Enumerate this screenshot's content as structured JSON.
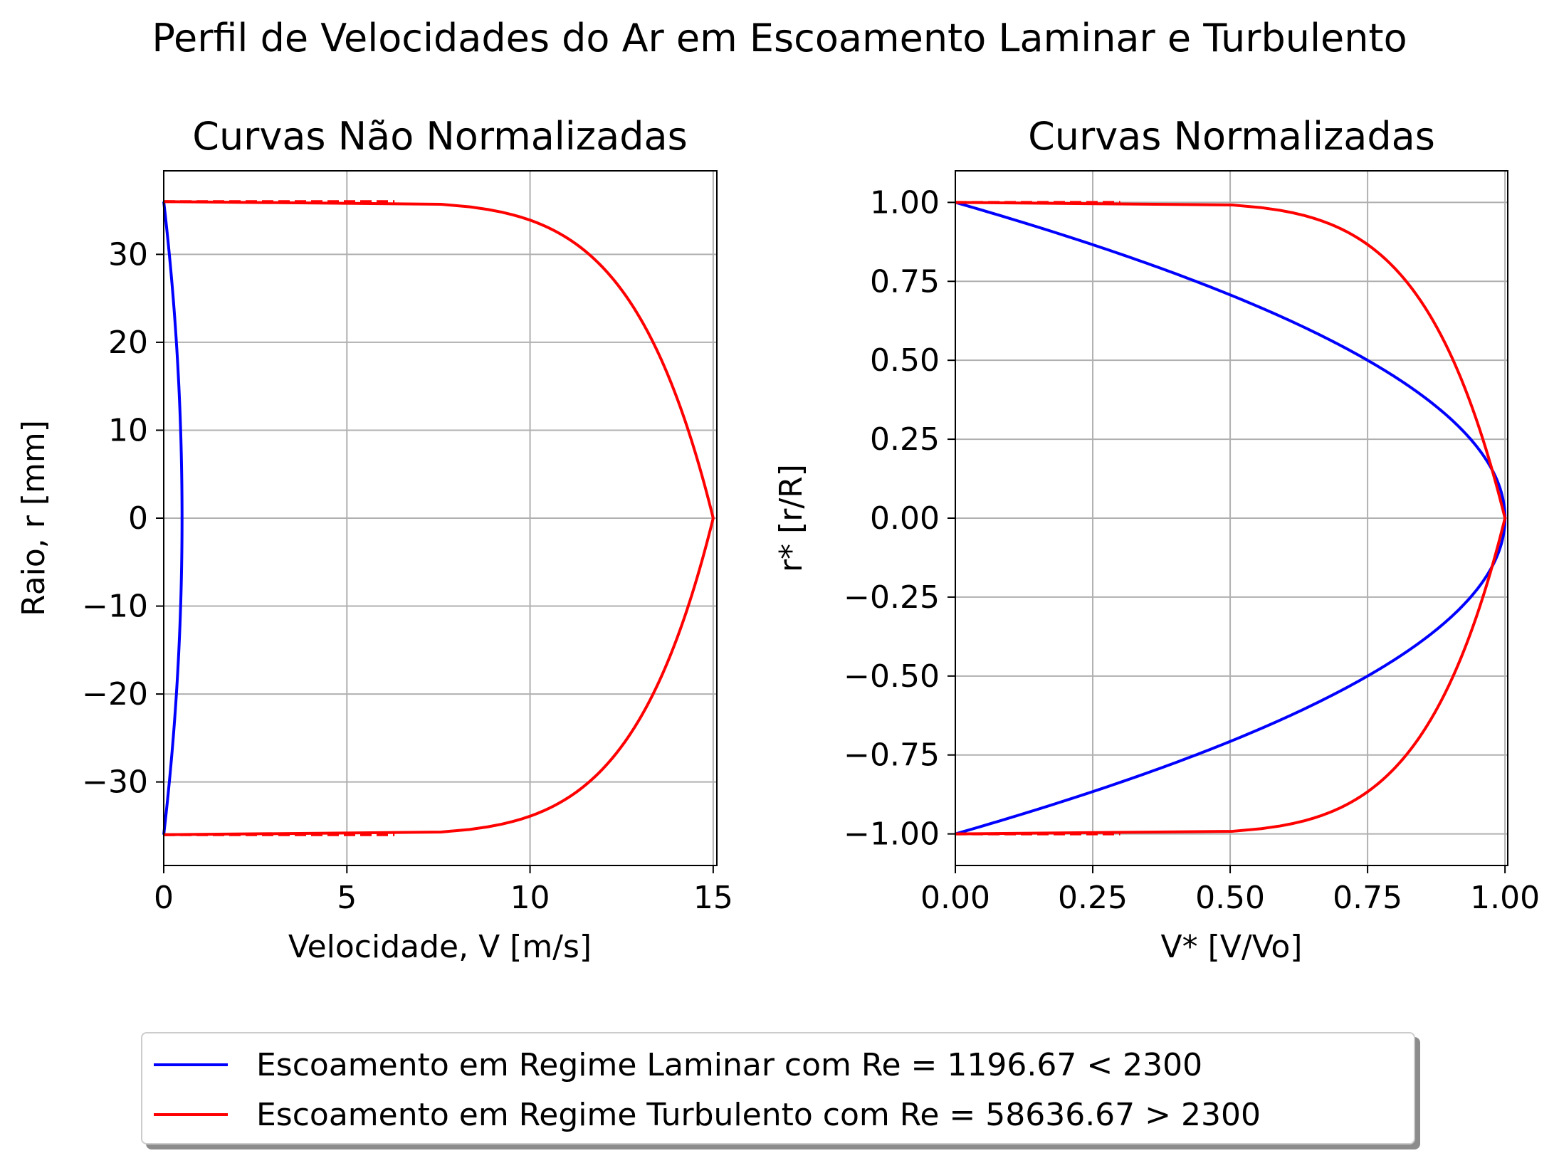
{
  "suptitle": "Perfil de Velocidades do Ar em Escoamento Laminar e Turbulento",
  "colors": {
    "laminar": "#0000ff",
    "turbulent": "#ff0000",
    "grid": "#b0b0b0"
  },
  "legend": {
    "laminar": "Escoamento em Regime Laminar com Re = 1196.67 < 2300",
    "turbulent": "Escoamento em Regime Turbulento com Re = 58636.67 > 2300"
  },
  "chart_data": [
    {
      "type": "line",
      "title": "Curvas Não Normalizadas",
      "xlabel": "Velocidade, V [m/s]",
      "ylabel": "Raio, r [mm]",
      "xlim": [
        0,
        15.1
      ],
      "ylim": [
        -39.5,
        39.5
      ],
      "xticks": [
        0,
        5,
        10,
        15
      ],
      "yticks": [
        30,
        20,
        10,
        0,
        -10,
        -20,
        -30
      ],
      "xtick_labels": [
        "0",
        "5",
        "10",
        "15"
      ],
      "ytick_labels": [
        "30",
        "20",
        "10",
        "0",
        "−10",
        "−20",
        "−30"
      ],
      "grid": true,
      "series": [
        {
          "name": "Escoamento em Regime Laminar com Re = 1196.67 < 2300",
          "profile": "laminar",
          "vmax": 0.5,
          "R": 36,
          "color": "#0000ff"
        },
        {
          "name": "Escoamento em Regime Turbulento com Re = 58636.67 > 2300",
          "profile": "turbulent",
          "vmax": 15,
          "R": 36,
          "color": "#ff0000"
        },
        {
          "name": "",
          "style": "dashed",
          "x": [
            0,
            6.3
          ],
          "y": [
            36,
            36
          ],
          "color": "#ff0000"
        },
        {
          "name": "",
          "style": "dashed",
          "x": [
            0,
            6.3
          ],
          "y": [
            -36,
            -36
          ],
          "color": "#ff0000"
        }
      ]
    },
    {
      "type": "line",
      "title": "Curvas Normalizadas",
      "xlabel": "V* [V/Vo]",
      "ylabel": "r* [r/R]",
      "xlim": [
        0,
        1.005
      ],
      "ylim": [
        -1.1,
        1.1
      ],
      "xticks": [
        0,
        0.25,
        0.5,
        0.75,
        1.0
      ],
      "yticks": [
        1.0,
        0.75,
        0.5,
        0.25,
        0.0,
        -0.25,
        -0.5,
        -0.75,
        -1.0
      ],
      "xtick_labels": [
        "0.00",
        "0.25",
        "0.50",
        "0.75",
        "1.00"
      ],
      "ytick_labels": [
        "1.00",
        "0.75",
        "0.50",
        "0.25",
        "0.00",
        "−0.25",
        "−0.50",
        "−0.75",
        "−1.00"
      ],
      "grid": true,
      "series": [
        {
          "name": "Escoamento em Regime Laminar com Re = 1196.67 < 2300",
          "profile": "laminar",
          "vmax": 1,
          "R": 1,
          "color": "#0000ff"
        },
        {
          "name": "Escoamento em Regime Turbulento com Re = 58636.67 > 2300",
          "profile": "turbulent",
          "vmax": 1,
          "R": 1,
          "color": "#ff0000"
        },
        {
          "name": "",
          "style": "dashed",
          "x": [
            0,
            0.3
          ],
          "y": [
            1,
            1
          ],
          "color": "#ff0000"
        },
        {
          "name": "",
          "style": "dashed",
          "x": [
            0,
            0.3
          ],
          "y": [
            -1,
            -1
          ],
          "color": "#ff0000"
        }
      ]
    }
  ]
}
